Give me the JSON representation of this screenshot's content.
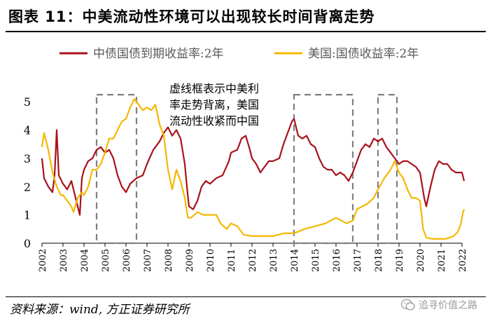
{
  "header": {
    "title": "图表 11：中美流动性环境可以出现较长时间背离走势"
  },
  "footer": {
    "source": "资料来源：wind, 方正证券研究所",
    "watermark": "追寻价值之路"
  },
  "colors": {
    "china": "#a8121b",
    "us": "#f5b800",
    "box": "#7f7f7f",
    "axis": "#000000"
  },
  "chart_data": {
    "type": "line",
    "title": "",
    "xlabel": "",
    "ylabel": "",
    "xlim": [
      2002,
      2022
    ],
    "ylim": [
      0,
      5.5
    ],
    "xticks": [
      2002,
      2003,
      2004,
      2005,
      2006,
      2007,
      2008,
      2009,
      2010,
      2011,
      2012,
      2013,
      2014,
      2015,
      2016,
      2017,
      2018,
      2019,
      2020,
      2021,
      2022
    ],
    "yticks": [
      0,
      1,
      2,
      3,
      4,
      5
    ],
    "legend": {
      "position": "top"
    },
    "annotation": {
      "lines": [
        "虚线框表示中美利",
        "率走势背离，美国",
        "流动性收紧而中国"
      ],
      "position": "upper-center"
    },
    "highlight_periods": [
      [
        2004.6,
        2006.5
      ],
      [
        2014.0,
        2016.8
      ],
      [
        2018.0,
        2018.9
      ]
    ],
    "series": [
      {
        "name": "中债国债到期收益率:2年",
        "color_key": "china",
        "points": [
          [
            2002.0,
            3.0
          ],
          [
            2002.1,
            2.3
          ],
          [
            2002.3,
            2.0
          ],
          [
            2002.5,
            1.8
          ],
          [
            2002.6,
            2.4
          ],
          [
            2002.7,
            4.0
          ],
          [
            2002.8,
            2.4
          ],
          [
            2003.0,
            2.1
          ],
          [
            2003.2,
            1.9
          ],
          [
            2003.4,
            2.2
          ],
          [
            2003.6,
            1.6
          ],
          [
            2003.8,
            1.0
          ],
          [
            2003.9,
            2.3
          ],
          [
            2004.0,
            2.6
          ],
          [
            2004.2,
            2.9
          ],
          [
            2004.4,
            3.0
          ],
          [
            2004.6,
            3.3
          ],
          [
            2004.8,
            3.4
          ],
          [
            2005.0,
            3.2
          ],
          [
            2005.2,
            3.3
          ],
          [
            2005.4,
            3.0
          ],
          [
            2005.6,
            2.4
          ],
          [
            2005.8,
            2.0
          ],
          [
            2006.0,
            1.8
          ],
          [
            2006.2,
            2.1
          ],
          [
            2006.5,
            2.3
          ],
          [
            2006.8,
            2.4
          ],
          [
            2007.0,
            2.8
          ],
          [
            2007.3,
            3.3
          ],
          [
            2007.6,
            3.6
          ],
          [
            2007.8,
            3.9
          ],
          [
            2008.0,
            4.1
          ],
          [
            2008.2,
            3.8
          ],
          [
            2008.4,
            4.0
          ],
          [
            2008.6,
            3.7
          ],
          [
            2008.8,
            2.8
          ],
          [
            2008.9,
            2.0
          ],
          [
            2009.0,
            1.3
          ],
          [
            2009.2,
            1.2
          ],
          [
            2009.4,
            1.5
          ],
          [
            2009.6,
            2.0
          ],
          [
            2009.8,
            2.2
          ],
          [
            2010.0,
            2.1
          ],
          [
            2010.3,
            2.3
          ],
          [
            2010.6,
            2.4
          ],
          [
            2010.9,
            2.9
          ],
          [
            2011.0,
            3.2
          ],
          [
            2011.3,
            3.3
          ],
          [
            2011.5,
            3.7
          ],
          [
            2011.7,
            3.8
          ],
          [
            2011.9,
            3.3
          ],
          [
            2012.0,
            3.0
          ],
          [
            2012.2,
            2.8
          ],
          [
            2012.4,
            2.5
          ],
          [
            2012.6,
            2.7
          ],
          [
            2012.8,
            2.9
          ],
          [
            2013.0,
            2.9
          ],
          [
            2013.3,
            3.0
          ],
          [
            2013.5,
            3.5
          ],
          [
            2013.7,
            3.9
          ],
          [
            2013.9,
            4.3
          ],
          [
            2014.0,
            4.4
          ],
          [
            2014.2,
            3.8
          ],
          [
            2014.4,
            3.7
          ],
          [
            2014.6,
            3.8
          ],
          [
            2014.8,
            3.5
          ],
          [
            2015.0,
            3.4
          ],
          [
            2015.2,
            3.0
          ],
          [
            2015.4,
            2.7
          ],
          [
            2015.6,
            2.6
          ],
          [
            2015.8,
            2.6
          ],
          [
            2016.0,
            2.4
          ],
          [
            2016.2,
            2.5
          ],
          [
            2016.4,
            2.4
          ],
          [
            2016.6,
            2.2
          ],
          [
            2016.8,
            2.5
          ],
          [
            2017.0,
            2.9
          ],
          [
            2017.2,
            3.3
          ],
          [
            2017.4,
            3.5
          ],
          [
            2017.6,
            3.4
          ],
          [
            2017.8,
            3.7
          ],
          [
            2018.0,
            3.6
          ],
          [
            2018.2,
            3.7
          ],
          [
            2018.4,
            3.4
          ],
          [
            2018.6,
            3.2
          ],
          [
            2018.8,
            3.0
          ],
          [
            2019.0,
            2.8
          ],
          [
            2019.2,
            2.9
          ],
          [
            2019.4,
            2.9
          ],
          [
            2019.6,
            2.8
          ],
          [
            2019.8,
            2.7
          ],
          [
            2020.0,
            2.5
          ],
          [
            2020.2,
            1.6
          ],
          [
            2020.3,
            1.3
          ],
          [
            2020.5,
            2.0
          ],
          [
            2020.7,
            2.6
          ],
          [
            2020.9,
            2.9
          ],
          [
            2021.1,
            2.8
          ],
          [
            2021.3,
            2.8
          ],
          [
            2021.5,
            2.6
          ],
          [
            2021.7,
            2.5
          ],
          [
            2021.9,
            2.5
          ],
          [
            2022.0,
            2.5
          ],
          [
            2022.1,
            2.2
          ]
        ]
      },
      {
        "name": "美国:国债收益率:2年",
        "color_key": "us",
        "points": [
          [
            2002.0,
            3.4
          ],
          [
            2002.1,
            3.9
          ],
          [
            2002.3,
            3.3
          ],
          [
            2002.5,
            2.5
          ],
          [
            2002.7,
            2.0
          ],
          [
            2002.9,
            1.7
          ],
          [
            2003.0,
            1.7
          ],
          [
            2003.2,
            1.5
          ],
          [
            2003.4,
            1.3
          ],
          [
            2003.5,
            1.1
          ],
          [
            2003.7,
            1.6
          ],
          [
            2003.9,
            1.8
          ],
          [
            2004.0,
            1.7
          ],
          [
            2004.2,
            2.0
          ],
          [
            2004.4,
            2.6
          ],
          [
            2004.6,
            2.6
          ],
          [
            2004.8,
            2.8
          ],
          [
            2005.0,
            3.2
          ],
          [
            2005.2,
            3.7
          ],
          [
            2005.4,
            3.7
          ],
          [
            2005.6,
            4.0
          ],
          [
            2005.8,
            4.3
          ],
          [
            2006.0,
            4.4
          ],
          [
            2006.2,
            4.8
          ],
          [
            2006.4,
            5.1
          ],
          [
            2006.6,
            4.9
          ],
          [
            2006.8,
            4.7
          ],
          [
            2007.0,
            4.8
          ],
          [
            2007.2,
            4.7
          ],
          [
            2007.4,
            4.9
          ],
          [
            2007.6,
            4.2
          ],
          [
            2007.8,
            3.8
          ],
          [
            2008.0,
            2.6
          ],
          [
            2008.2,
            1.9
          ],
          [
            2008.4,
            2.6
          ],
          [
            2008.6,
            2.2
          ],
          [
            2008.8,
            1.6
          ],
          [
            2008.95,
            0.9
          ],
          [
            2009.1,
            0.9
          ],
          [
            2009.4,
            1.1
          ],
          [
            2009.7,
            1.0
          ],
          [
            2010.0,
            1.0
          ],
          [
            2010.3,
            1.0
          ],
          [
            2010.5,
            0.7
          ],
          [
            2010.8,
            0.5
          ],
          [
            2011.0,
            0.7
          ],
          [
            2011.3,
            0.6
          ],
          [
            2011.6,
            0.3
          ],
          [
            2012.0,
            0.25
          ],
          [
            2012.5,
            0.25
          ],
          [
            2013.0,
            0.25
          ],
          [
            2013.5,
            0.35
          ],
          [
            2014.0,
            0.35
          ],
          [
            2014.5,
            0.5
          ],
          [
            2015.0,
            0.6
          ],
          [
            2015.5,
            0.7
          ],
          [
            2016.0,
            0.9
          ],
          [
            2016.5,
            0.7
          ],
          [
            2016.8,
            0.8
          ],
          [
            2017.0,
            1.2
          ],
          [
            2017.5,
            1.4
          ],
          [
            2017.8,
            1.6
          ],
          [
            2018.0,
            1.9
          ],
          [
            2018.3,
            2.3
          ],
          [
            2018.6,
            2.6
          ],
          [
            2018.8,
            2.9
          ],
          [
            2019.0,
            2.5
          ],
          [
            2019.2,
            2.3
          ],
          [
            2019.4,
            1.9
          ],
          [
            2019.6,
            1.6
          ],
          [
            2019.8,
            1.6
          ],
          [
            2020.0,
            1.5
          ],
          [
            2020.15,
            0.5
          ],
          [
            2020.3,
            0.2
          ],
          [
            2020.6,
            0.15
          ],
          [
            2020.9,
            0.15
          ],
          [
            2021.2,
            0.15
          ],
          [
            2021.6,
            0.25
          ],
          [
            2021.8,
            0.4
          ],
          [
            2021.95,
            0.7
          ],
          [
            2022.05,
            1.1
          ],
          [
            2022.1,
            1.2
          ]
        ]
      }
    ]
  }
}
